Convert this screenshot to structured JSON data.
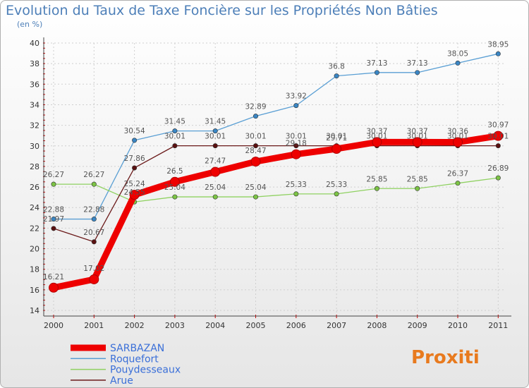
{
  "title": "Evolution du Taux de Taxe Foncière sur les Propriétés Non Bâties",
  "unit": "(en %)",
  "logo": "Proxiti",
  "colors": {
    "SARBAZAN": "#ee0000",
    "Roquefort": "#5a9fd4",
    "Pouydesseaux": "#8fd161",
    "Arue": "#6b1a1a",
    "marker_Roquefort": "#3a86c4",
    "marker_Pouydesseaux": "#7cc445",
    "marker_Arue": "#5a1010",
    "label": "#555555",
    "legend_text": "#3a6fd8"
  },
  "chart_data": {
    "type": "line",
    "title": "Evolution du Taux de Taxe Foncière sur les Propriétés Non Bâties",
    "ylabel": "(en %)",
    "xlabel": "",
    "ylim": [
      14,
      40
    ],
    "yticks": [
      14,
      16,
      18,
      20,
      22,
      24,
      26,
      28,
      30,
      32,
      34,
      36,
      38,
      40
    ],
    "categories": [
      "2000",
      "2001",
      "2002",
      "2003",
      "2004",
      "2005",
      "2006",
      "2007",
      "2008",
      "2009",
      "2010",
      "2011"
    ],
    "grid": true,
    "legend_position": "bottom-left",
    "series": [
      {
        "name": "Roquefort",
        "values": [
          22.88,
          22.88,
          30.54,
          31.45,
          31.45,
          32.89,
          33.92,
          36.8,
          37.13,
          37.13,
          38.05,
          38.95
        ],
        "labels": [
          "22.88",
          "22.88",
          "30.54",
          "31.45",
          "31.45",
          "32.89",
          "33.92",
          "36.8",
          "37.13",
          "37.13",
          "38.05",
          "38.95"
        ]
      },
      {
        "name": "Pouydesseaux",
        "values": [
          26.27,
          26.27,
          24.55,
          25.04,
          25.04,
          25.04,
          25.33,
          25.33,
          25.85,
          25.85,
          26.37,
          26.89
        ],
        "labels": [
          "26.27",
          "26.27",
          "24.55",
          "25.04",
          "25.04",
          "25.04",
          "25.33",
          "25.33",
          "25.85",
          "25.85",
          "26.37",
          "26.89"
        ]
      },
      {
        "name": "Arue",
        "values": [
          21.97,
          20.67,
          27.86,
          30.01,
          30.01,
          30.01,
          30.01,
          30.01,
          30.01,
          30.01,
          30.01,
          30.01
        ],
        "labels": [
          "21.97",
          "20.67",
          "27.86",
          "30.01",
          "30.01",
          "30.01",
          "30.01",
          "30.01",
          "30.01",
          "30.01",
          "30.01",
          "30.01"
        ]
      },
      {
        "name": "SARBAZAN",
        "values": [
          16.21,
          17.02,
          25.24,
          26.5,
          27.47,
          28.47,
          29.18,
          29.71,
          30.37,
          30.37,
          30.36,
          30.97
        ],
        "labels": [
          "16.21",
          "17.02",
          "25.24",
          "26.5",
          "27.47",
          "28.47",
          "29.18",
          "29.71",
          "30.37",
          "30.37",
          "30.36",
          "30.97"
        ]
      }
    ],
    "legend_order": [
      "SARBAZAN",
      "Roquefort",
      "Pouydesseaux",
      "Arue"
    ]
  }
}
